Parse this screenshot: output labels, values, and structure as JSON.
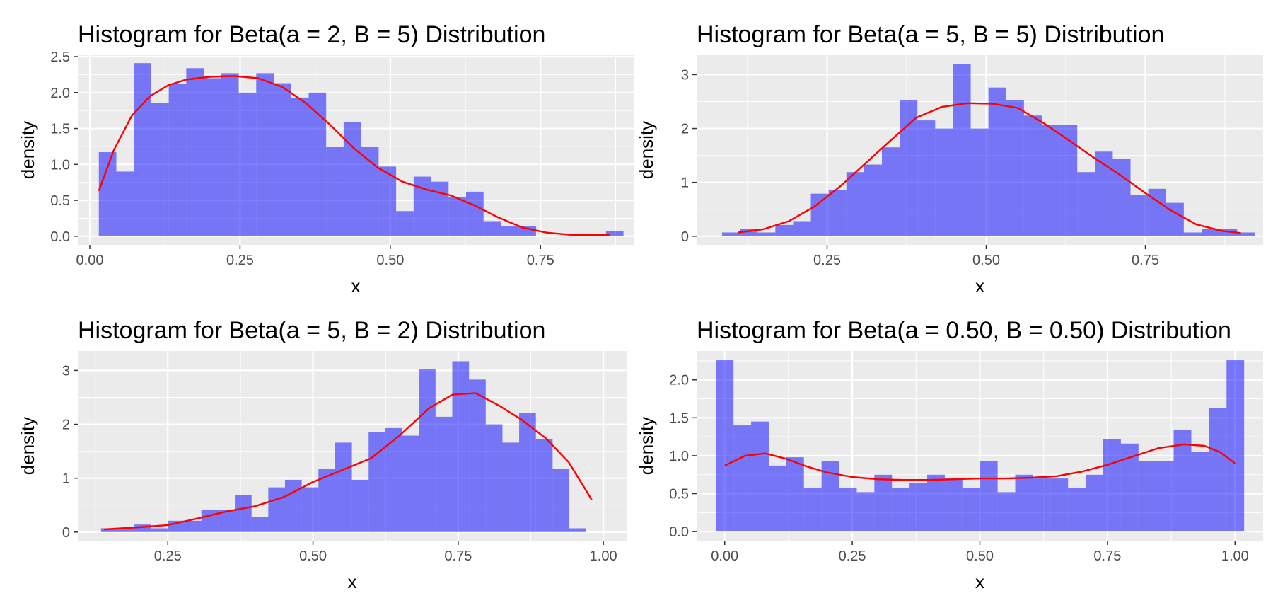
{
  "colors": {
    "panel_bg": "#EBEBEB",
    "grid_major": "#FFFFFF",
    "bar_fill": "#0000FF",
    "bar_alpha": 0.5,
    "density_line": "#FF0000",
    "tick_text": "#4D4D4D"
  },
  "chart_data": [
    {
      "type": "bar",
      "title": "Histogram for Beta(a = 2, B = 5) Distribution",
      "xlabel": "x",
      "ylabel": "density",
      "xlim": [
        -0.02,
        0.905
      ],
      "ylim": [
        -0.12,
        2.52
      ],
      "xticks": [
        0,
        0.25,
        0.5,
        0.75
      ],
      "xtick_labels": [
        "0.00",
        "0.25",
        "0.50",
        "0.75"
      ],
      "yticks": [
        0,
        0.5,
        1,
        1.5,
        2,
        2.5
      ],
      "ytick_labels": [
        "0.0",
        "0.5",
        "1.0",
        "1.5",
        "2.0",
        "2.5"
      ],
      "grid": true,
      "bin_start": 0.015,
      "bin_width": 0.0291,
      "values": [
        1.17,
        0.9,
        2.41,
        1.86,
        2.12,
        2.34,
        2.2,
        2.27,
        2.0,
        2.27,
        2.13,
        1.93,
        2.0,
        1.24,
        1.59,
        1.24,
        0.97,
        0.35,
        0.83,
        0.76,
        0.55,
        0.62,
        0.21,
        0.14,
        0.14,
        0,
        0,
        0,
        0,
        0.07
      ],
      "density": {
        "x": [
          0.015,
          0.04,
          0.07,
          0.1,
          0.13,
          0.16,
          0.2,
          0.24,
          0.28,
          0.32,
          0.36,
          0.4,
          0.44,
          0.48,
          0.52,
          0.56,
          0.6,
          0.64,
          0.68,
          0.72,
          0.76,
          0.8,
          0.84,
          0.865
        ],
        "y": [
          0.63,
          1.2,
          1.68,
          1.95,
          2.1,
          2.18,
          2.22,
          2.23,
          2.2,
          2.08,
          1.85,
          1.55,
          1.22,
          0.95,
          0.76,
          0.65,
          0.57,
          0.43,
          0.26,
          0.12,
          0.05,
          0.02,
          0.02,
          0.02
        ]
      }
    },
    {
      "type": "bar",
      "title": "Histogram for Beta(a = 5, B = 5) Distribution",
      "xlabel": "x",
      "ylabel": "density",
      "xlim": [
        0.045,
        0.935
      ],
      "ylim": [
        -0.16,
        3.36
      ],
      "xticks": [
        0.25,
        0.5,
        0.75
      ],
      "xtick_labels": [
        "0.25",
        "0.50",
        "0.75"
      ],
      "yticks": [
        0,
        1,
        2,
        3
      ],
      "ytick_labels": [
        "0",
        "1",
        "2",
        "3"
      ],
      "grid": true,
      "bin_start": 0.085,
      "bin_width": 0.0279,
      "values": [
        0.07,
        0.14,
        0.07,
        0.21,
        0.28,
        0.79,
        0.86,
        1.19,
        1.33,
        1.65,
        2.53,
        2.15,
        2.0,
        3.19,
        2.0,
        2.76,
        2.53,
        2.24,
        2.07,
        2.07,
        1.19,
        1.57,
        1.43,
        0.76,
        0.88,
        0.62,
        0.07,
        0.14,
        0.14,
        0.07
      ],
      "density": {
        "x": [
          0.11,
          0.15,
          0.19,
          0.23,
          0.27,
          0.31,
          0.35,
          0.39,
          0.43,
          0.47,
          0.51,
          0.55,
          0.59,
          0.63,
          0.67,
          0.71,
          0.75,
          0.79,
          0.83,
          0.87,
          0.9
        ],
        "y": [
          0.07,
          0.13,
          0.28,
          0.55,
          0.92,
          1.35,
          1.78,
          2.2,
          2.4,
          2.47,
          2.46,
          2.38,
          2.1,
          1.78,
          1.45,
          1.14,
          0.8,
          0.48,
          0.22,
          0.1,
          0.06
        ]
      }
    },
    {
      "type": "bar",
      "title": "Histogram for Beta(a = 5, B = 2) Distribution",
      "xlabel": "x",
      "ylabel": "density",
      "xlim": [
        0.095,
        1.04
      ],
      "ylim": [
        -0.16,
        3.36
      ],
      "xticks": [
        0.25,
        0.5,
        0.75,
        1
      ],
      "xtick_labels": [
        "0.25",
        "0.50",
        "0.75",
        "1.00"
      ],
      "yticks": [
        0,
        1,
        2,
        3
      ],
      "ytick_labels": [
        "0",
        "1",
        "2",
        "3"
      ],
      "grid": true,
      "bin_start": 0.135,
      "bin_width": 0.0288,
      "values": [
        0.07,
        0.07,
        0.14,
        0.07,
        0.21,
        0.21,
        0.41,
        0.41,
        0.69,
        0.28,
        0.83,
        0.97,
        0.83,
        1.17,
        1.66,
        0.97,
        1.86,
        1.93,
        1.79,
        3.03,
        2.14,
        3.17,
        2.83,
        2.0,
        1.66,
        2.21,
        1.72,
        1.17,
        0.07,
        0
      ],
      "density": {
        "x": [
          0.14,
          0.2,
          0.25,
          0.3,
          0.35,
          0.4,
          0.45,
          0.5,
          0.55,
          0.6,
          0.65,
          0.7,
          0.74,
          0.78,
          0.82,
          0.86,
          0.9,
          0.94,
          0.98
        ],
        "y": [
          0.05,
          0.09,
          0.13,
          0.25,
          0.38,
          0.48,
          0.65,
          0.93,
          1.15,
          1.37,
          1.8,
          2.3,
          2.55,
          2.58,
          2.35,
          2.08,
          1.75,
          1.3,
          0.6
        ]
      }
    },
    {
      "type": "bar",
      "title": "Histogram for Beta(a = 0.50, B = 0.50) Distribution",
      "xlabel": "x",
      "ylabel": "density",
      "xlim": [
        -0.055,
        1.055
      ],
      "ylim": [
        -0.12,
        2.38
      ],
      "xticks": [
        0,
        0.25,
        0.5,
        0.75,
        1
      ],
      "xtick_labels": [
        "0.00",
        "0.25",
        "0.50",
        "0.75",
        "1.00"
      ],
      "yticks": [
        0,
        0.5,
        1,
        1.5,
        2
      ],
      "ytick_labels": [
        "0.0",
        "0.5",
        "1.0",
        "1.5",
        "2.0"
      ],
      "grid": true,
      "bin_start": -0.0172,
      "bin_width": 0.0345,
      "values": [
        2.26,
        1.4,
        1.45,
        0.87,
        0.98,
        0.58,
        0.93,
        0.58,
        0.52,
        0.75,
        0.58,
        0.64,
        0.75,
        0.7,
        0.58,
        0.93,
        0.52,
        0.75,
        0.7,
        0.7,
        0.58,
        0.75,
        1.22,
        1.16,
        0.93,
        0.93,
        1.34,
        1.05,
        1.63,
        2.26
      ],
      "density": {
        "x": [
          0.0,
          0.04,
          0.08,
          0.12,
          0.16,
          0.2,
          0.25,
          0.3,
          0.35,
          0.4,
          0.45,
          0.5,
          0.55,
          0.6,
          0.65,
          0.7,
          0.75,
          0.8,
          0.85,
          0.9,
          0.94,
          0.97,
          1.0
        ],
        "y": [
          0.87,
          1.0,
          1.03,
          0.96,
          0.86,
          0.78,
          0.72,
          0.69,
          0.68,
          0.68,
          0.69,
          0.7,
          0.7,
          0.71,
          0.73,
          0.79,
          0.88,
          0.99,
          1.1,
          1.15,
          1.13,
          1.05,
          0.9
        ]
      }
    }
  ]
}
